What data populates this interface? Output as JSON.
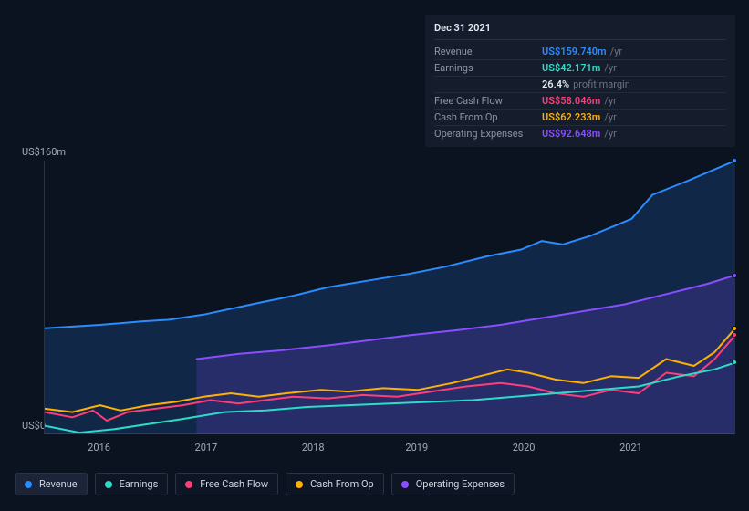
{
  "chart": {
    "type": "area-line",
    "background_color": "#0b1220",
    "grid_color": "#2a3344",
    "y_axis": {
      "min": 0,
      "max": 160,
      "top_label": "US$160m",
      "bottom_label": "US$0",
      "label_color": "#a0aab8",
      "label_fontsize": 11
    },
    "x_axis": {
      "labels": [
        "2016",
        "2017",
        "2018",
        "2019",
        "2020",
        "2021"
      ],
      "label_color": "#a0aab8",
      "label_fontsize": 11
    },
    "series": [
      {
        "name": "Revenue",
        "color": "#2a8cff",
        "fill": "rgba(42,140,255,0.18)",
        "data": [
          {
            "x": 0.0,
            "y": 62
          },
          {
            "x": 0.08,
            "y": 64
          },
          {
            "x": 0.14,
            "y": 66
          },
          {
            "x": 0.18,
            "y": 67
          },
          {
            "x": 0.23,
            "y": 70
          },
          {
            "x": 0.3,
            "y": 76
          },
          {
            "x": 0.36,
            "y": 81
          },
          {
            "x": 0.41,
            "y": 86
          },
          {
            "x": 0.47,
            "y": 90
          },
          {
            "x": 0.53,
            "y": 94
          },
          {
            "x": 0.58,
            "y": 98
          },
          {
            "x": 0.64,
            "y": 104
          },
          {
            "x": 0.69,
            "y": 108
          },
          {
            "x": 0.72,
            "y": 113
          },
          {
            "x": 0.75,
            "y": 111
          },
          {
            "x": 0.79,
            "y": 116
          },
          {
            "x": 0.85,
            "y": 126
          },
          {
            "x": 0.88,
            "y": 140
          },
          {
            "x": 0.93,
            "y": 148
          },
          {
            "x": 1.0,
            "y": 160
          }
        ]
      },
      {
        "name": "Operating Expenses",
        "color": "#8a4dff",
        "fill": "rgba(138,77,255,0.18)",
        "data": [
          {
            "x": 0.22,
            "y": 44
          },
          {
            "x": 0.28,
            "y": 47
          },
          {
            "x": 0.34,
            "y": 49
          },
          {
            "x": 0.41,
            "y": 52
          },
          {
            "x": 0.47,
            "y": 55
          },
          {
            "x": 0.53,
            "y": 58
          },
          {
            "x": 0.6,
            "y": 61
          },
          {
            "x": 0.66,
            "y": 64
          },
          {
            "x": 0.72,
            "y": 68
          },
          {
            "x": 0.78,
            "y": 72
          },
          {
            "x": 0.84,
            "y": 76
          },
          {
            "x": 0.9,
            "y": 82
          },
          {
            "x": 0.96,
            "y": 88
          },
          {
            "x": 1.0,
            "y": 93
          }
        ]
      },
      {
        "name": "Cash From Op",
        "color": "#ffb100",
        "fill": "none",
        "data": [
          {
            "x": 0.0,
            "y": 15
          },
          {
            "x": 0.04,
            "y": 13
          },
          {
            "x": 0.08,
            "y": 17
          },
          {
            "x": 0.11,
            "y": 14
          },
          {
            "x": 0.15,
            "y": 17
          },
          {
            "x": 0.19,
            "y": 19
          },
          {
            "x": 0.23,
            "y": 22
          },
          {
            "x": 0.27,
            "y": 24
          },
          {
            "x": 0.31,
            "y": 22
          },
          {
            "x": 0.35,
            "y": 24
          },
          {
            "x": 0.4,
            "y": 26
          },
          {
            "x": 0.44,
            "y": 25
          },
          {
            "x": 0.49,
            "y": 27
          },
          {
            "x": 0.54,
            "y": 26
          },
          {
            "x": 0.59,
            "y": 30
          },
          {
            "x": 0.63,
            "y": 34
          },
          {
            "x": 0.67,
            "y": 38
          },
          {
            "x": 0.7,
            "y": 36
          },
          {
            "x": 0.74,
            "y": 32
          },
          {
            "x": 0.78,
            "y": 30
          },
          {
            "x": 0.82,
            "y": 34
          },
          {
            "x": 0.86,
            "y": 33
          },
          {
            "x": 0.9,
            "y": 44
          },
          {
            "x": 0.94,
            "y": 40
          },
          {
            "x": 0.97,
            "y": 48
          },
          {
            "x": 1.0,
            "y": 62
          }
        ]
      },
      {
        "name": "Free Cash Flow",
        "color": "#ff3d78",
        "fill": "none",
        "data": [
          {
            "x": 0.0,
            "y": 13
          },
          {
            "x": 0.04,
            "y": 10
          },
          {
            "x": 0.07,
            "y": 14
          },
          {
            "x": 0.09,
            "y": 8
          },
          {
            "x": 0.12,
            "y": 13
          },
          {
            "x": 0.16,
            "y": 15
          },
          {
            "x": 0.2,
            "y": 17
          },
          {
            "x": 0.24,
            "y": 20
          },
          {
            "x": 0.28,
            "y": 18
          },
          {
            "x": 0.32,
            "y": 20
          },
          {
            "x": 0.36,
            "y": 22
          },
          {
            "x": 0.41,
            "y": 21
          },
          {
            "x": 0.46,
            "y": 23
          },
          {
            "x": 0.51,
            "y": 22
          },
          {
            "x": 0.56,
            "y": 25
          },
          {
            "x": 0.61,
            "y": 28
          },
          {
            "x": 0.66,
            "y": 30
          },
          {
            "x": 0.7,
            "y": 28
          },
          {
            "x": 0.74,
            "y": 24
          },
          {
            "x": 0.78,
            "y": 22
          },
          {
            "x": 0.82,
            "y": 26
          },
          {
            "x": 0.86,
            "y": 24
          },
          {
            "x": 0.9,
            "y": 36
          },
          {
            "x": 0.94,
            "y": 34
          },
          {
            "x": 0.97,
            "y": 44
          },
          {
            "x": 1.0,
            "y": 58
          }
        ]
      },
      {
        "name": "Earnings",
        "color": "#2bdcc7",
        "fill": "none",
        "data": [
          {
            "x": 0.0,
            "y": 5
          },
          {
            "x": 0.05,
            "y": 1
          },
          {
            "x": 0.1,
            "y": 3
          },
          {
            "x": 0.15,
            "y": 6
          },
          {
            "x": 0.2,
            "y": 9
          },
          {
            "x": 0.26,
            "y": 13
          },
          {
            "x": 0.32,
            "y": 14
          },
          {
            "x": 0.38,
            "y": 16
          },
          {
            "x": 0.44,
            "y": 17
          },
          {
            "x": 0.5,
            "y": 18
          },
          {
            "x": 0.56,
            "y": 19
          },
          {
            "x": 0.62,
            "y": 20
          },
          {
            "x": 0.68,
            "y": 22
          },
          {
            "x": 0.74,
            "y": 24
          },
          {
            "x": 0.8,
            "y": 26
          },
          {
            "x": 0.86,
            "y": 28
          },
          {
            "x": 0.92,
            "y": 34
          },
          {
            "x": 0.97,
            "y": 38
          },
          {
            "x": 1.0,
            "y": 42
          }
        ]
      }
    ]
  },
  "tooltip": {
    "title": "Dec 31 2021",
    "rows": [
      {
        "label": "Revenue",
        "value": "US$159.740m",
        "value_color": "#2a8cff",
        "suffix": "/yr"
      },
      {
        "label": "Earnings",
        "value": "US$42.171m",
        "value_color": "#2bdcc7",
        "suffix": "/yr"
      },
      {
        "label": "",
        "value": "26.4%",
        "value_color": "#e6e9ef",
        "suffix": "profit margin"
      },
      {
        "label": "Free Cash Flow",
        "value": "US$58.046m",
        "value_color": "#ff3d78",
        "suffix": "/yr"
      },
      {
        "label": "Cash From Op",
        "value": "US$62.233m",
        "value_color": "#ffb100",
        "suffix": "/yr"
      },
      {
        "label": "Operating Expenses",
        "value": "US$92.648m",
        "value_color": "#8a4dff",
        "suffix": "/yr"
      }
    ]
  },
  "legend": {
    "items": [
      {
        "label": "Revenue",
        "color": "#2a8cff",
        "active": true
      },
      {
        "label": "Earnings",
        "color": "#2bdcc7",
        "active": false
      },
      {
        "label": "Free Cash Flow",
        "color": "#ff3d78",
        "active": false
      },
      {
        "label": "Cash From Op",
        "color": "#ffb100",
        "active": false
      },
      {
        "label": "Operating Expenses",
        "color": "#8a4dff",
        "active": false
      }
    ]
  }
}
